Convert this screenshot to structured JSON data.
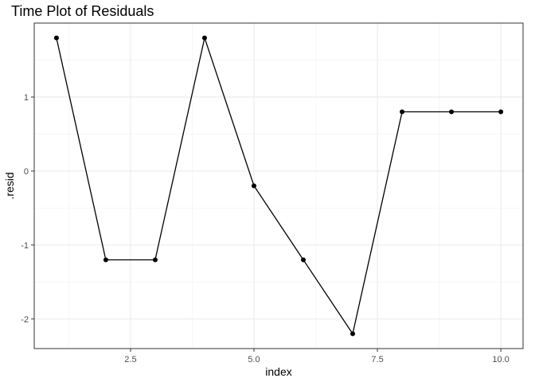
{
  "chart_data": {
    "type": "line",
    "title": "Time Plot of Residuals",
    "xlabel": "index",
    "ylabel": ".resid",
    "xlim": [
      0.55,
      10.45
    ],
    "ylim": [
      -2.4,
      2.0
    ],
    "x_ticks": [
      2.5,
      5.0,
      7.5,
      10.0
    ],
    "x_tick_labels": [
      "2.5",
      "5.0",
      "7.5",
      "10.0"
    ],
    "x_minor_ticks": [
      1.25,
      3.75,
      6.25,
      8.75
    ],
    "y_ticks": [
      -2,
      -1,
      0,
      1
    ],
    "y_tick_labels": [
      "-2",
      "-1",
      "0",
      "1"
    ],
    "y_minor_ticks": [
      -1.5,
      -0.5,
      0.5,
      1.5
    ],
    "grid": true,
    "series": [
      {
        "x": [
          1,
          2,
          3,
          4,
          5,
          6,
          7,
          8,
          9,
          10
        ],
        "values": [
          1.8,
          -1.2,
          -1.2,
          1.8,
          -0.2,
          -1.2,
          -2.2,
          0.8,
          0.8,
          0.8
        ],
        "color": "#000000"
      }
    ],
    "colors": {
      "panel_border": "#333333",
      "grid_major": "#ebebeb",
      "grid_minor": "#f2f2f2"
    }
  }
}
